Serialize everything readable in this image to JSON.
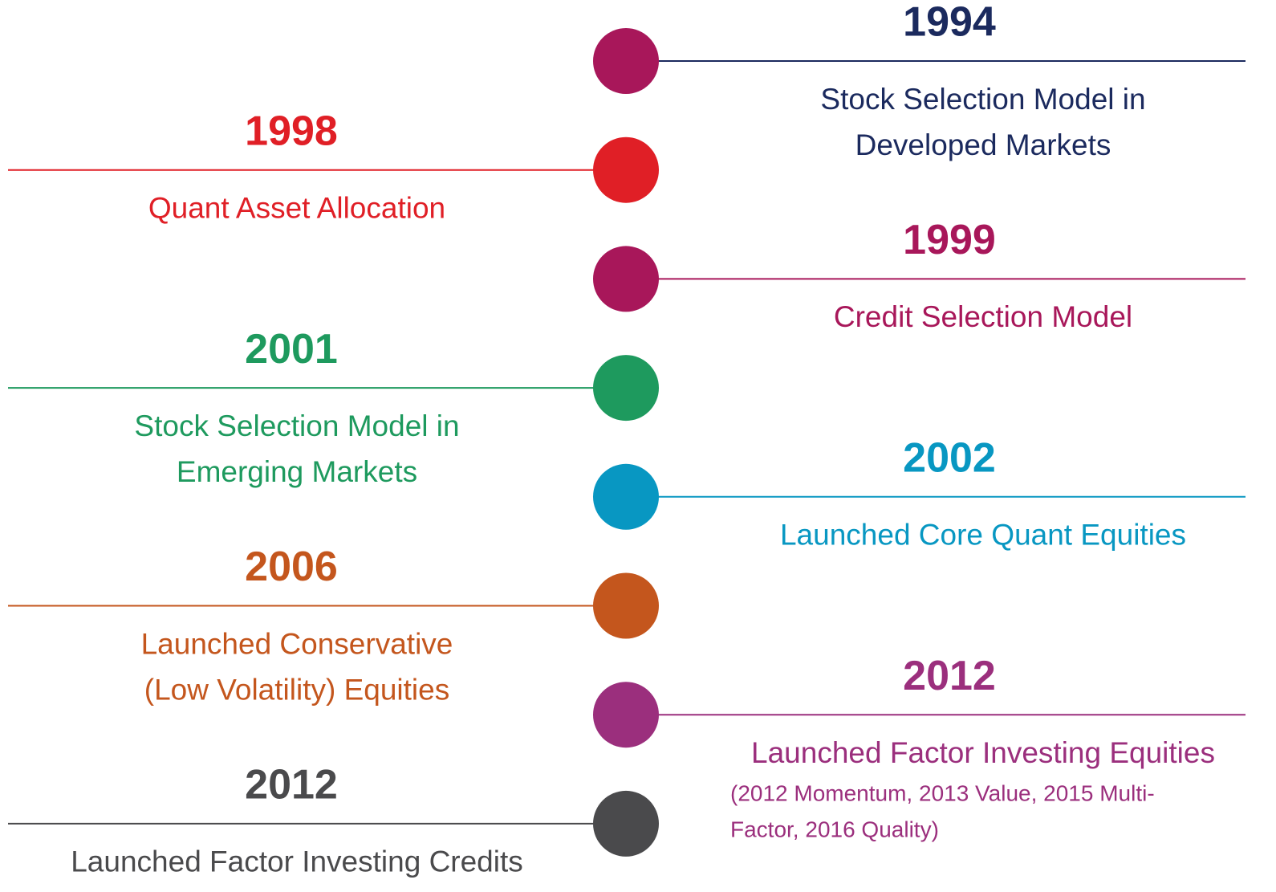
{
  "events": [
    {
      "year": "1994",
      "lines": [
        "Stock Selection Model in",
        "Developed Markets"
      ],
      "color": "#1b2a5e",
      "dot_color": "#a8175a"
    },
    {
      "year": "1998",
      "lines": [
        "Quant Asset Allocation"
      ],
      "color": "#e01f26",
      "dot_color": "#e01f26"
    },
    {
      "year": "1999",
      "lines": [
        "Credit Selection Model"
      ],
      "color": "#a8175a",
      "dot_color": "#a8175a"
    },
    {
      "year": "2001",
      "lines": [
        "Stock Selection Model in",
        "Emerging Markets"
      ],
      "color": "#1e9a5e",
      "dot_color": "#1e9a5e"
    },
    {
      "year": "2002",
      "lines": [
        "Launched Core Quant Equities"
      ],
      "color": "#0897c2",
      "dot_color": "#0897c2"
    },
    {
      "year": "2006",
      "lines": [
        "Launched Conservative",
        "(Low Volatility) Equities"
      ],
      "color": "#c4561d",
      "dot_color": "#c4561d"
    },
    {
      "year": "2012",
      "lines": [
        "Launched Factor Investing Equities"
      ],
      "note": [
        "(2012 Momentum, 2013 Value, 2015 Multi-",
        "Factor, 2016 Quality)"
      ],
      "color": "#9b2f7d",
      "dot_color": "#9b2f7d"
    },
    {
      "year": "2012",
      "lines": [
        "Launched Factor Investing Credits"
      ],
      "color": "#4a4a4c",
      "dot_color": "#4a4a4c"
    }
  ]
}
